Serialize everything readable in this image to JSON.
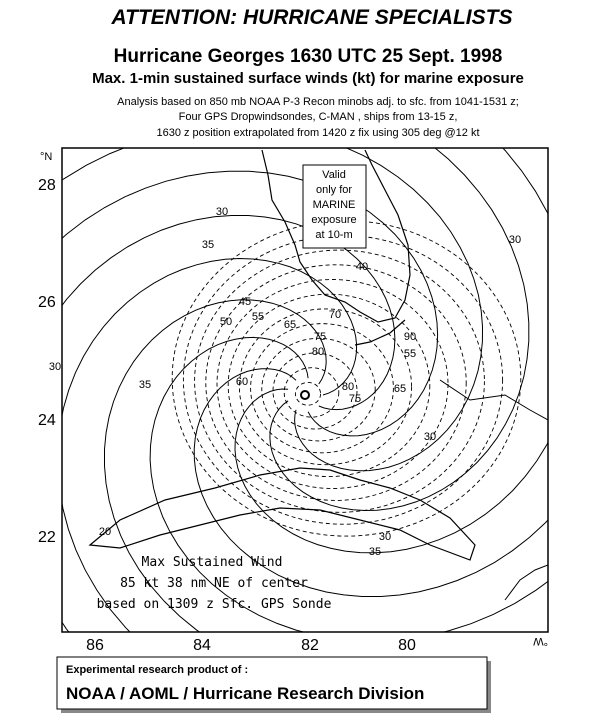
{
  "header": "ATTENTION: HURRICANE SPECIALISTS",
  "title": "Hurricane Georges 1630 UTC 25 Sept. 1998",
  "subtitle": "Max. 1-min sustained surface winds (kt) for marine exposure",
  "notes": [
    "Analysis based on 850 mb NOAA P-3 Recon minobs adj. to sfc. from 1041-1531 z;",
    "Four GPS Dropwindsondes, C-MAN , ships from 13-15 z,",
    "1630 z position extrapolated from 1420 z fix using 305 deg @12 kt"
  ],
  "map": {
    "lat_labels": [
      "28",
      "26",
      "24",
      "22"
    ],
    "lon_labels": [
      "86",
      "84",
      "82",
      "80"
    ],
    "north_label": "°N",
    "west_label": "°W",
    "valid_note": [
      "Valid",
      "only for",
      "MARINE",
      "exposure",
      "at 10-m"
    ],
    "max_wind": [
      "Max Sustained Wind",
      "85 kt  38 nm NE of center",
      "based on 1309 z Sfc. GPS Sonde"
    ],
    "contour_labels": [
      "30",
      "35",
      "30",
      "40",
      "45",
      "50",
      "55",
      "65",
      "70",
      "75",
      "80",
      "60",
      "80",
      "75",
      "90",
      "55",
      "65",
      "30",
      "35",
      "20",
      "30",
      "35",
      "30"
    ]
  },
  "footer": {
    "line1": "Experimental research product of :",
    "line2": "NOAA / AOML / Hurricane Research Division"
  }
}
